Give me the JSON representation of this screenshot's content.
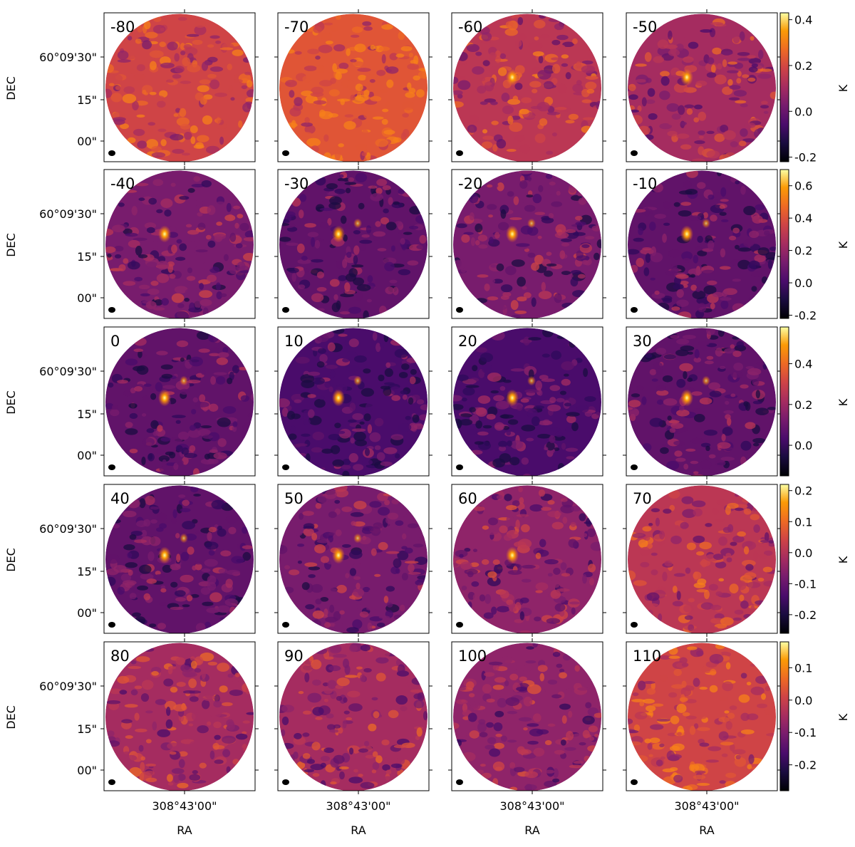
{
  "chart_data": {
    "type": "heatmap",
    "description_grid": "5 rows x 4 columns of velocity-channel intensity maps, circular field of view",
    "colormap": "inferno",
    "xlabel": "RA",
    "ylabel": "DEC",
    "x_tick_label": "308°43'00\"",
    "y_tick_labels": [
      "60°09'30\"",
      "15\"",
      "00\""
    ],
    "channels": [
      "-80",
      "-70",
      "-60",
      "-50",
      "-40",
      "-30",
      "-20",
      "-10",
      "0",
      "10",
      "20",
      "30",
      "40",
      "50",
      "60",
      "70",
      "80",
      "90",
      "100",
      "110"
    ],
    "colorbars": [
      {
        "unit": "K",
        "ticks": [
          "0.4",
          "0.2",
          "0.0",
          "-0.2"
        ],
        "range": [
          -0.22,
          0.43
        ]
      },
      {
        "unit": "K",
        "ticks": [
          "0.6",
          "0.4",
          "0.2",
          "0.0",
          "-0.2"
        ],
        "range": [
          -0.22,
          0.7
        ]
      },
      {
        "unit": "K",
        "ticks": [
          "0.4",
          "0.2",
          "0.0"
        ],
        "range": [
          -0.15,
          0.58
        ]
      },
      {
        "unit": "K",
        "ticks": [
          "0.2",
          "0.1",
          "0.0",
          "-0.1",
          "-0.2"
        ],
        "range": [
          -0.26,
          0.22
        ]
      },
      {
        "unit": "K",
        "ticks": [
          "0.1",
          "0.0",
          "-0.1",
          "-0.2"
        ],
        "range": [
          -0.28,
          0.18
        ]
      }
    ]
  }
}
